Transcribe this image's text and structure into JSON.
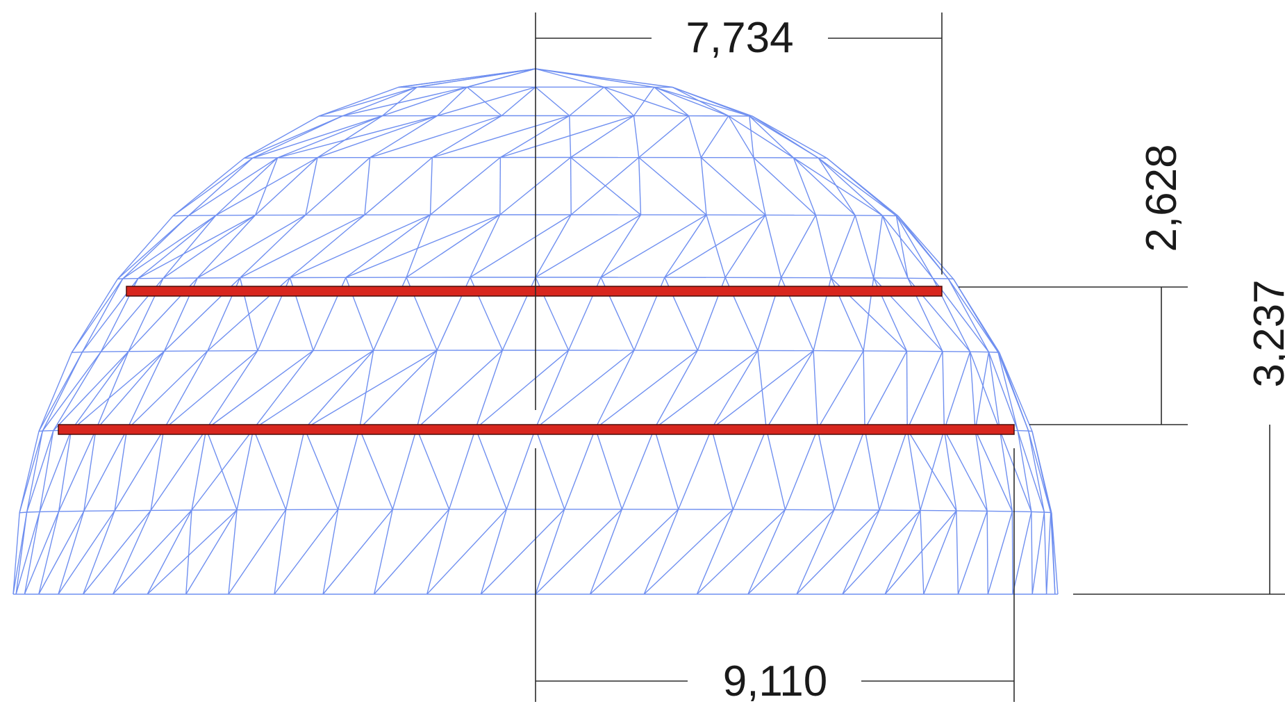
{
  "diagram": {
    "dimensions": {
      "top_width": "7,734",
      "bottom_width": "9,110",
      "upper_height": "2,628",
      "lower_height": "3,237"
    },
    "colors": {
      "mesh": "#6f8ff0",
      "beam": "#d8261e",
      "dimension": "#2b2b2b"
    }
  }
}
